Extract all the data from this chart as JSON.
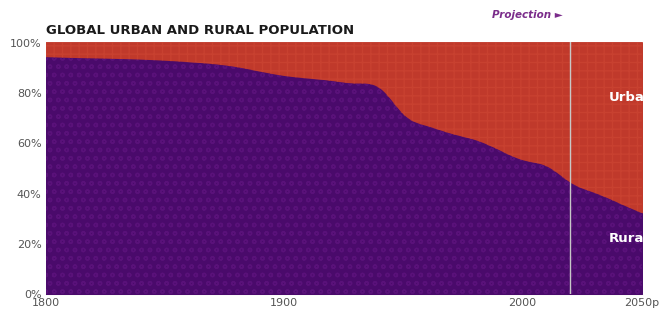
{
  "title": "GLOBAL URBAN AND RURAL POPULATION",
  "title_fontsize": 9.5,
  "title_color": "#1a1a1a",
  "title_fontweight": "bold",
  "projection_label": "Projection ►",
  "projection_color": "#7b2d8b",
  "projection_year": 2020,
  "urban_label": "Urban",
  "rural_label": "Rural",
  "label_color": "#ffffff",
  "label_fontsize": 9.5,
  "urban_color": "#c0392b",
  "rural_color": "#4a0a6b",
  "background_color": "#ffffff",
  "years": [
    1800,
    1820,
    1840,
    1860,
    1880,
    1900,
    1910,
    1920,
    1930,
    1940,
    1950,
    1960,
    1970,
    1980,
    1990,
    2000,
    2010,
    2020,
    2030,
    2040,
    2050
  ],
  "rural_pct": [
    94.0,
    93.5,
    93.0,
    92.0,
    90.0,
    86.5,
    85.5,
    84.5,
    83.5,
    81.5,
    71.0,
    66.5,
    63.5,
    61.0,
    57.0,
    53.0,
    50.5,
    44.0,
    40.0,
    36.0,
    32.0
  ],
  "ylabel_values": [
    0,
    20,
    40,
    60,
    80,
    100
  ],
  "ylabel_ticks": [
    "0%",
    "20%",
    "40%",
    "60%",
    "80%",
    "100%"
  ],
  "xtick_vals": [
    1800,
    1900,
    2000,
    2050
  ],
  "xtick_labels": [
    "1800",
    "1900",
    "2000",
    "2050p"
  ],
  "xlim": [
    1800,
    2050
  ],
  "ylim": [
    0,
    100
  ],
  "divider_line_color": "#c8c8c8",
  "spine_color": "#aaaaaa",
  "tick_color": "#555555",
  "urban_hatch_color": "#d9503a",
  "rural_hatch_color": "#6b1a8a"
}
